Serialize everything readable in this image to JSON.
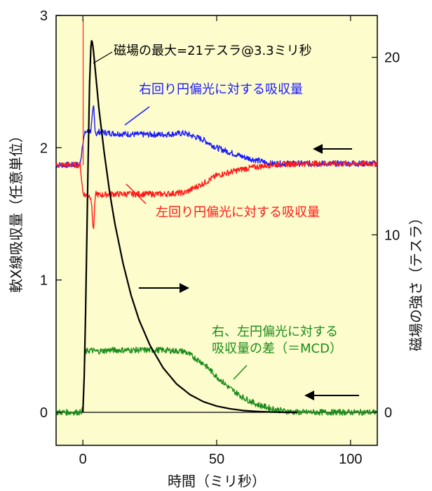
{
  "chart_data": {
    "type": "line",
    "xlabel": "時間（ミリ秒）",
    "ylabel_left": "軟X線吸収量（任意単位）",
    "ylabel_right": "磁場の強さ（テスラ）",
    "xlim": [
      -10,
      110
    ],
    "ylim_left": [
      -0.25,
      3
    ],
    "ylim_right": [
      -1.86,
      22.36
    ],
    "x_ticks": [
      "0",
      "50",
      "100"
    ],
    "y_left_ticks": [
      "0",
      "1",
      "2",
      "3"
    ],
    "y_right_ticks": [
      "0",
      "10",
      "20"
    ],
    "background_color": "#fdfccc",
    "series": [
      {
        "name": "右回り円偏光に対する吸収量",
        "axis": "left",
        "color": "#1a1aff",
        "x": [
          -10,
          -1,
          0,
          1,
          2,
          3,
          4,
          4.5,
          5,
          6,
          10,
          20,
          30,
          38,
          45,
          50,
          60,
          70,
          80,
          90,
          100,
          110
        ],
        "values": [
          1.87,
          1.87,
          2.05,
          2.12,
          2.12,
          2.13,
          2.32,
          2.15,
          2.1,
          2.12,
          2.11,
          2.1,
          2.1,
          2.11,
          2.06,
          2.0,
          1.93,
          1.88,
          1.88,
          1.88,
          1.88,
          1.88
        ]
      },
      {
        "name": "左回り円偏光に対する吸収量",
        "axis": "left",
        "color": "#ff1a1a",
        "x": [
          -10,
          -1,
          0,
          1,
          2,
          3,
          4,
          4.5,
          5,
          6,
          10,
          20,
          30,
          38,
          45,
          50,
          60,
          70,
          80,
          90,
          100,
          110
        ],
        "values": [
          1.87,
          1.87,
          1.66,
          1.64,
          1.64,
          1.63,
          1.36,
          1.6,
          1.66,
          1.64,
          1.65,
          1.65,
          1.65,
          1.66,
          1.73,
          1.79,
          1.84,
          1.87,
          1.88,
          1.88,
          1.88,
          1.88
        ]
      },
      {
        "name": "右、左円偏光に対する吸収量の差（＝MCD）",
        "axis": "left",
        "color": "#1a8c1a",
        "x": [
          -10,
          -1,
          0,
          0.5,
          1,
          3,
          5,
          10,
          20,
          30,
          38,
          45,
          50,
          55,
          60,
          65,
          70,
          75,
          80,
          90,
          100,
          110
        ],
        "values": [
          0.0,
          0.0,
          0.02,
          0.3,
          0.46,
          0.47,
          0.46,
          0.47,
          0.47,
          0.47,
          0.46,
          0.37,
          0.27,
          0.18,
          0.11,
          0.06,
          0.03,
          0.01,
          0.0,
          0.0,
          0.0,
          0.0
        ]
      },
      {
        "name": "磁場",
        "axis": "right",
        "color": "#000000",
        "x": [
          0,
          0.5,
          1,
          1.5,
          2,
          2.5,
          3,
          3.3,
          3.6,
          4,
          5,
          6,
          8,
          10,
          12,
          15,
          18,
          21,
          25,
          30,
          35,
          40,
          45,
          50,
          55,
          60,
          65,
          70,
          75,
          80
        ],
        "values": [
          0,
          2.0,
          5.5,
          10.0,
          14.5,
          18.5,
          20.6,
          21.0,
          20.8,
          20.3,
          18.7,
          17.1,
          14.6,
          12.4,
          10.6,
          8.4,
          6.6,
          5.2,
          3.8,
          2.5,
          1.6,
          1.0,
          0.6,
          0.35,
          0.2,
          0.1,
          0.05,
          0.02,
          0.0,
          0.0
        ]
      }
    ],
    "annotations": {
      "peak": "磁場の最大=21テスラ@3.3ミリ秒",
      "right_label": "右回り円偏光に対する吸収量",
      "left_label": "左回り円偏光に対する吸収量",
      "mcd_label_line1": "右、左円偏光に対する",
      "mcd_label_line2": "吸収量の差（＝MCD）"
    }
  }
}
